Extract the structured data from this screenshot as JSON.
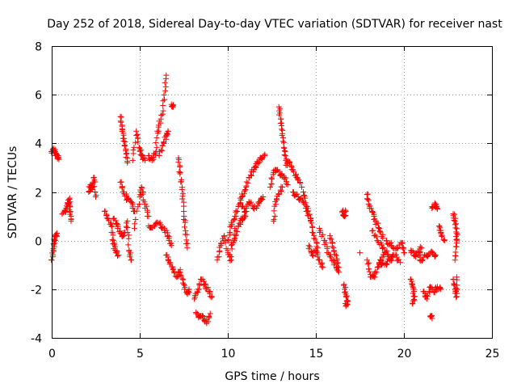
{
  "chart_data": {
    "type": "scatter",
    "title": "Day 252 of 2018, Sidereal Day-to-day VTEC variation (SDTVAR) for receiver nast",
    "xlabel": "GPS time / hours",
    "ylabel": "SDTVAR / TECUs",
    "xlim": [
      0,
      25
    ],
    "ylim": [
      -4,
      8
    ],
    "xticks": [
      0,
      5,
      10,
      15,
      20,
      25
    ],
    "yticks": [
      -4,
      -2,
      0,
      2,
      4,
      6,
      8
    ],
    "xtick_labels": [
      "0",
      "5",
      "10",
      "15",
      "20",
      "25"
    ],
    "ytick_labels": [
      "-4",
      "-2",
      "0",
      "2",
      "4",
      "6",
      "8"
    ],
    "grid": true,
    "marker": "plus",
    "color": "#ff0000",
    "series": [
      {
        "name": "SDTVAR",
        "segments": [
          [
            [
              0.0,
              3.6
            ],
            [
              0.1,
              3.8
            ],
            [
              0.2,
              3.6
            ],
            [
              0.3,
              3.5
            ],
            [
              0.4,
              3.4
            ]
          ],
          [
            [
              0.0,
              -0.8
            ],
            [
              0.1,
              -0.4
            ],
            [
              0.15,
              0.0
            ],
            [
              0.2,
              0.2
            ],
            [
              0.3,
              0.3
            ]
          ],
          [
            [
              0.6,
              1.1
            ],
            [
              0.8,
              1.2
            ],
            [
              0.9,
              1.5
            ],
            [
              1.0,
              1.7
            ],
            [
              1.05,
              1.2
            ],
            [
              1.1,
              0.8
            ]
          ],
          [
            [
              2.1,
              2.0
            ],
            [
              2.2,
              2.3
            ],
            [
              2.3,
              2.1
            ],
            [
              2.4,
              2.6
            ],
            [
              2.5,
              1.8
            ]
          ],
          [
            [
              3.0,
              1.2
            ],
            [
              3.2,
              0.9
            ],
            [
              3.4,
              0.6
            ],
            [
              3.5,
              0.0
            ],
            [
              3.6,
              -0.4
            ],
            [
              3.8,
              -0.6
            ]
          ],
          [
            [
              3.5,
              0.9
            ],
            [
              3.7,
              0.7
            ],
            [
              3.9,
              0.3
            ],
            [
              4.1,
              0.2
            ],
            [
              4.3,
              0.8
            ],
            [
              4.4,
              -0.4
            ],
            [
              4.5,
              -0.8
            ]
          ],
          [
            [
              3.9,
              5.1
            ],
            [
              4.0,
              4.6
            ],
            [
              4.1,
              4.2
            ],
            [
              4.2,
              3.7
            ],
            [
              4.3,
              3.2
            ]
          ],
          [
            [
              4.6,
              3.3
            ],
            [
              4.8,
              4.5
            ],
            [
              5.0,
              3.8
            ],
            [
              5.1,
              3.5
            ],
            [
              5.3,
              3.3
            ]
          ],
          [
            [
              3.9,
              2.4
            ],
            [
              4.1,
              2.0
            ],
            [
              4.3,
              1.7
            ],
            [
              4.5,
              1.6
            ],
            [
              4.7,
              1.2
            ]
          ],
          [
            [
              4.7,
              0.5
            ],
            [
              5.0,
              1.8
            ],
            [
              5.1,
              2.2
            ],
            [
              5.3,
              1.5
            ],
            [
              5.5,
              1.0
            ]
          ],
          [
            [
              5.5,
              3.5
            ],
            [
              5.7,
              3.3
            ],
            [
              5.9,
              3.6
            ],
            [
              6.0,
              4.5
            ],
            [
              6.2,
              5.0
            ],
            [
              6.4,
              5.8
            ],
            [
              6.5,
              6.8
            ]
          ],
          [
            [
              6.1,
              3.5
            ],
            [
              6.3,
              3.9
            ],
            [
              6.5,
              4.3
            ],
            [
              6.6,
              4.5
            ]
          ],
          [
            [
              5.5,
              0.6
            ],
            [
              5.8,
              0.6
            ],
            [
              6.1,
              0.7
            ],
            [
              6.4,
              0.5
            ],
            [
              6.6,
              0.2
            ],
            [
              6.8,
              -0.2
            ]
          ],
          [
            [
              6.5,
              -0.6
            ],
            [
              6.7,
              -0.9
            ],
            [
              6.9,
              -1.2
            ],
            [
              7.1,
              -1.5
            ],
            [
              7.3,
              -1.2
            ]
          ],
          [
            [
              6.8,
              5.6
            ],
            [
              6.9,
              5.5
            ]
          ],
          [
            [
              7.2,
              3.4
            ],
            [
              7.3,
              2.8
            ],
            [
              7.4,
              2.1
            ],
            [
              7.5,
              1.2
            ],
            [
              7.6,
              0.4
            ],
            [
              7.7,
              -0.3
            ]
          ],
          [
            [
              7.3,
              -1.3
            ],
            [
              7.5,
              -1.8
            ],
            [
              7.7,
              -2.2
            ],
            [
              7.8,
              -2.0
            ]
          ],
          [
            [
              8.1,
              -2.4
            ],
            [
              8.3,
              -2.0
            ],
            [
              8.5,
              -1.6
            ],
            [
              8.7,
              -1.8
            ],
            [
              8.9,
              -2.1
            ],
            [
              9.1,
              -2.3
            ]
          ],
          [
            [
              8.2,
              -3.0
            ],
            [
              8.4,
              -3.1
            ],
            [
              8.6,
              -3.2
            ],
            [
              8.8,
              -3.4
            ],
            [
              9.0,
              -3.0
            ]
          ],
          [
            [
              9.4,
              -0.8
            ],
            [
              9.6,
              -0.2
            ],
            [
              9.8,
              0.2
            ],
            [
              10.0,
              -0.5
            ],
            [
              10.2,
              -0.8
            ],
            [
              10.4,
              0.5
            ]
          ],
          [
            [
              10.0,
              0.0
            ],
            [
              10.2,
              0.6
            ],
            [
              10.4,
              1.0
            ],
            [
              10.6,
              1.4
            ],
            [
              10.8,
              1.8
            ],
            [
              11.0,
              2.1
            ],
            [
              11.2,
              2.6
            ]
          ],
          [
            [
              11.3,
              2.7
            ],
            [
              11.5,
              3.0
            ],
            [
              11.7,
              3.2
            ],
            [
              11.9,
              3.4
            ],
            [
              12.1,
              3.5
            ]
          ],
          [
            [
              10.2,
              -0.2
            ],
            [
              10.4,
              0.1
            ],
            [
              10.6,
              0.6
            ],
            [
              10.8,
              0.9
            ],
            [
              11.0,
              1.0
            ]
          ],
          [
            [
              10.8,
              1.4
            ],
            [
              11.0,
              1.2
            ],
            [
              11.2,
              1.6
            ],
            [
              11.5,
              1.3
            ],
            [
              11.8,
              1.6
            ],
            [
              12.0,
              1.8
            ]
          ],
          [
            [
              12.4,
              2.2
            ],
            [
              12.6,
              2.8
            ],
            [
              12.8,
              2.9
            ],
            [
              13.0,
              2.7
            ],
            [
              13.2,
              2.6
            ],
            [
              13.4,
              2.3
            ]
          ],
          [
            [
              12.6,
              0.8
            ],
            [
              12.7,
              1.6
            ],
            [
              12.9,
              1.9
            ],
            [
              13.1,
              2.2
            ]
          ],
          [
            [
              12.9,
              5.5
            ],
            [
              13.0,
              5.0
            ],
            [
              13.1,
              4.4
            ],
            [
              13.2,
              3.8
            ],
            [
              13.3,
              3.3
            ]
          ],
          [
            [
              13.3,
              3.1
            ],
            [
              13.5,
              3.2
            ],
            [
              13.7,
              2.9
            ],
            [
              13.9,
              2.6
            ],
            [
              14.1,
              2.4
            ]
          ],
          [
            [
              13.7,
              2.0
            ],
            [
              14.0,
              1.8
            ],
            [
              14.3,
              1.6
            ],
            [
              14.5,
              1.2
            ],
            [
              14.7,
              0.9
            ]
          ],
          [
            [
              14.2,
              2.2
            ],
            [
              14.5,
              1.4
            ],
            [
              14.7,
              0.8
            ],
            [
              14.9,
              0.2
            ],
            [
              15.1,
              -0.3
            ]
          ],
          [
            [
              14.6,
              -0.2
            ],
            [
              14.8,
              -0.6
            ],
            [
              15.0,
              -0.4
            ],
            [
              15.2,
              -0.8
            ],
            [
              15.4,
              -1.1
            ]
          ],
          [
            [
              15.2,
              0.5
            ],
            [
              15.5,
              0.0
            ],
            [
              15.7,
              -0.5
            ],
            [
              16.0,
              -0.8
            ],
            [
              16.2,
              -1.2
            ]
          ],
          [
            [
              15.8,
              0.2
            ],
            [
              16.0,
              -0.3
            ],
            [
              16.2,
              -0.8
            ],
            [
              16.3,
              -1.3
            ]
          ],
          [
            [
              16.5,
              1.2
            ],
            [
              16.6,
              1.0
            ],
            [
              16.7,
              1.2
            ]
          ],
          [
            [
              16.6,
              -1.8
            ],
            [
              16.7,
              -2.2
            ],
            [
              16.8,
              -2.5
            ],
            [
              16.7,
              -2.7
            ]
          ],
          [
            [
              17.5,
              -0.5
            ]
          ],
          [
            [
              17.9,
              1.9
            ],
            [
              18.0,
              1.5
            ],
            [
              18.2,
              1.2
            ],
            [
              18.4,
              0.8
            ],
            [
              18.6,
              0.5
            ],
            [
              18.8,
              0.1
            ]
          ],
          [
            [
              18.2,
              0.4
            ],
            [
              18.5,
              0.0
            ],
            [
              18.8,
              -0.3
            ],
            [
              19.1,
              -0.6
            ],
            [
              19.4,
              -0.6
            ]
          ],
          [
            [
              17.9,
              -0.8
            ],
            [
              18.1,
              -1.4
            ],
            [
              18.3,
              -1.5
            ],
            [
              18.5,
              -1.1
            ],
            [
              18.7,
              -0.8
            ],
            [
              18.9,
              -0.5
            ]
          ],
          [
            [
              18.6,
              -0.9
            ],
            [
              18.9,
              -1.0
            ],
            [
              19.2,
              -0.8
            ],
            [
              19.5,
              -0.6
            ],
            [
              19.8,
              -0.9
            ]
          ],
          [
            [
              19.0,
              0.0
            ],
            [
              19.3,
              -0.2
            ],
            [
              19.6,
              -0.3
            ],
            [
              19.9,
              -0.1
            ],
            [
              20.0,
              -0.5
            ]
          ],
          [
            [
              20.4,
              -1.6
            ],
            [
              20.5,
              -1.9
            ],
            [
              20.6,
              -2.3
            ],
            [
              20.5,
              -2.6
            ]
          ],
          [
            [
              20.4,
              -0.4
            ],
            [
              20.6,
              -0.6
            ],
            [
              20.8,
              -0.5
            ],
            [
              21.0,
              -0.3
            ]
          ],
          [
            [
              20.8,
              -0.6
            ],
            [
              21.0,
              -0.8
            ],
            [
              21.3,
              -0.6
            ],
            [
              21.6,
              -0.5
            ],
            [
              21.8,
              -0.6
            ]
          ],
          [
            [
              21.1,
              -2.1
            ],
            [
              21.3,
              -2.4
            ],
            [
              21.5,
              -1.9
            ],
            [
              21.7,
              -2.1
            ],
            [
              21.9,
              -1.9
            ],
            [
              22.1,
              -2.0
            ]
          ],
          [
            [
              21.5,
              -3.1
            ],
            [
              21.6,
              -3.2
            ]
          ],
          [
            [
              21.6,
              1.4
            ],
            [
              21.8,
              1.5
            ],
            [
              21.9,
              1.3
            ]
          ],
          [
            [
              22.0,
              0.6
            ],
            [
              22.1,
              0.3
            ],
            [
              22.3,
              0.0
            ]
          ],
          [
            [
              22.8,
              1.1
            ],
            [
              22.9,
              0.8
            ],
            [
              23.0,
              0.3
            ],
            [
              23.0,
              -0.1
            ],
            [
              22.9,
              -0.8
            ]
          ],
          [
            [
              22.8,
              -1.6
            ],
            [
              22.9,
              -2.0
            ],
            [
              23.0,
              -2.3
            ],
            [
              23.0,
              -1.5
            ]
          ]
        ]
      }
    ]
  }
}
